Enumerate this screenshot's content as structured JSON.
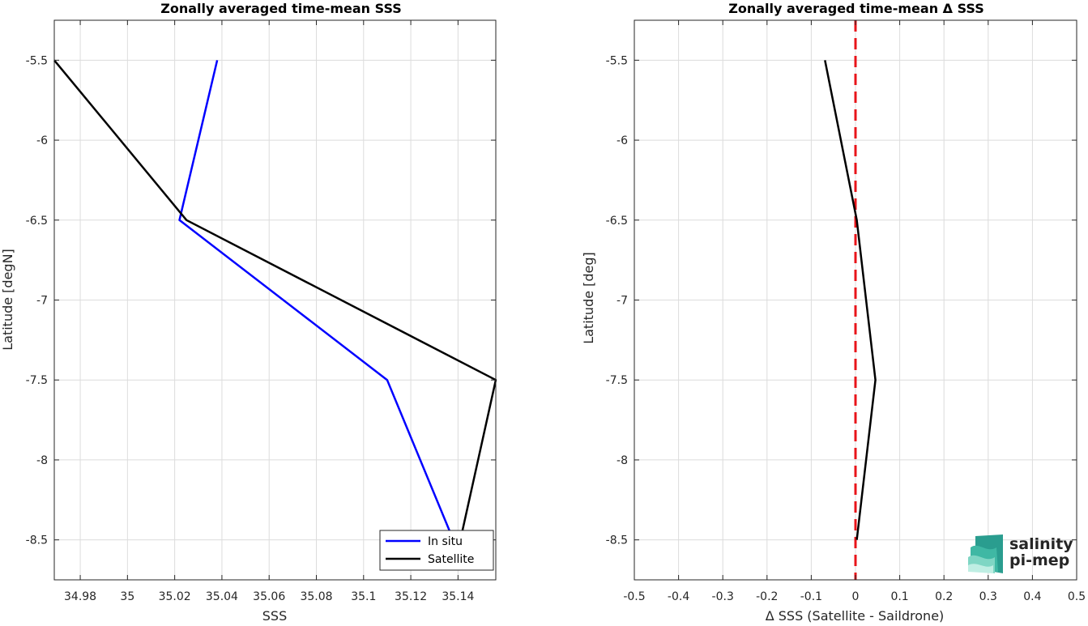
{
  "chart_data": [
    {
      "type": "line",
      "title": "Zonally averaged time-mean SSS",
      "xlabel": "SSS",
      "ylabel": "Latitude [degN]",
      "xlim": [
        34.969,
        35.156
      ],
      "ylim": [
        -8.75,
        -5.25
      ],
      "x_ticks": [
        "34.98",
        "35",
        "35.02",
        "35.04",
        "35.06",
        "35.08",
        "35.1",
        "35.12",
        "35.14"
      ],
      "y_ticks": [
        "-5.5",
        "-6",
        "-6.5",
        "-7",
        "-7.5",
        "-8",
        "-8.5"
      ],
      "grid": true,
      "legend": "bottom-right",
      "series": [
        {
          "name": "In situ",
          "color": "#0000ff",
          "x": [
            35.038,
            35.022,
            35.11,
            35.138
          ],
          "y": [
            -5.5,
            -6.5,
            -7.5,
            -8.5
          ]
        },
        {
          "name": "Satellite",
          "color": "#000000",
          "x": [
            34.969,
            35.025,
            35.156,
            35.141
          ],
          "y": [
            -5.5,
            -6.5,
            -7.5,
            -8.5
          ]
        }
      ]
    },
    {
      "type": "line",
      "title": "Zonally averaged time-mean Δ SSS",
      "xlabel": "Δ SSS (Satellite - Saildrone)",
      "ylabel": "Latitude [deg]",
      "xlim": [
        -0.5,
        0.5
      ],
      "ylim": [
        -8.75,
        -5.25
      ],
      "x_ticks": [
        "-0.5",
        "-0.4",
        "-0.3",
        "-0.2",
        "-0.1",
        "0",
        "0.1",
        "0.2",
        "0.3",
        "0.4",
        "0.5"
      ],
      "y_ticks": [
        "-5.5",
        "-6",
        "-6.5",
        "-7",
        "-7.5",
        "-8",
        "-8.5"
      ],
      "grid": true,
      "reference_line": {
        "x": 0,
        "color": "#e8141a",
        "style": "dashed"
      },
      "series": [
        {
          "color": "#000000",
          "x": [
            -0.069,
            0.003,
            0.045,
            0.003
          ],
          "y": [
            -5.5,
            -6.5,
            -7.5,
            -8.5
          ]
        }
      ]
    }
  ],
  "logo": {
    "line1": "salinity",
    "line2": "pi-mep",
    "color": "#1aa88e"
  }
}
